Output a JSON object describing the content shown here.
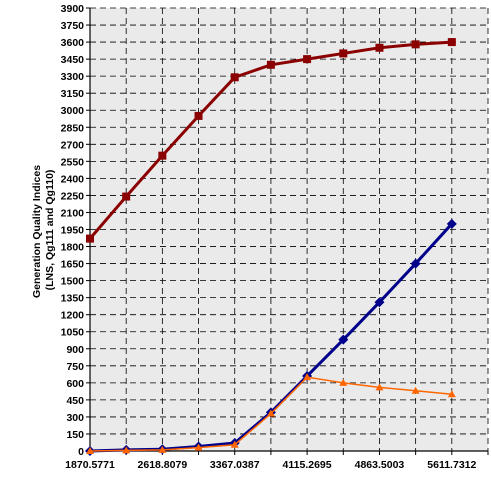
{
  "chart_data": {
    "type": "line",
    "title": "",
    "xlabel": "",
    "ylabel": [
      "Generation Quality Indices",
      "(LNS, Qg111 and Qg110)"
    ],
    "x": [
      1870.5771,
      2244.6925,
      2618.8079,
      2992.9233,
      3367.0387,
      3741.1541,
      4115.2695,
      4489.3849,
      4863.5003,
      5237.6157,
      5611.7312
    ],
    "x_tick_labels": [
      "1870.5771",
      "2618.8079",
      "3367.0387",
      "4115.2695",
      "4863.5003",
      "5611.7312"
    ],
    "xlim": [
      1870.5771,
      5985.8466
    ],
    "ylim": [
      0,
      3900
    ],
    "yticks": [
      0,
      150,
      300,
      450,
      600,
      750,
      900,
      1050,
      1200,
      1350,
      1500,
      1650,
      1800,
      1950,
      2100,
      2250,
      2400,
      2550,
      2700,
      2850,
      3000,
      3150,
      3300,
      3450,
      3600,
      3750,
      3900
    ],
    "grid": true,
    "series": [
      {
        "color": "#8b0000",
        "marker": "square",
        "values": [
          1870,
          2240,
          2600,
          2950,
          3290,
          3400,
          3450,
          3500,
          3550,
          3580,
          3600
        ]
      },
      {
        "color": "#00008b",
        "marker": "diamond",
        "values": [
          0,
          10,
          15,
          40,
          70,
          340,
          660,
          980,
          1310,
          1650,
          2000
        ]
      },
      {
        "color": "#ff6600",
        "marker": "triangle",
        "values": [
          0,
          5,
          10,
          30,
          55,
          330,
          650,
          600,
          560,
          530,
          500
        ]
      }
    ]
  }
}
